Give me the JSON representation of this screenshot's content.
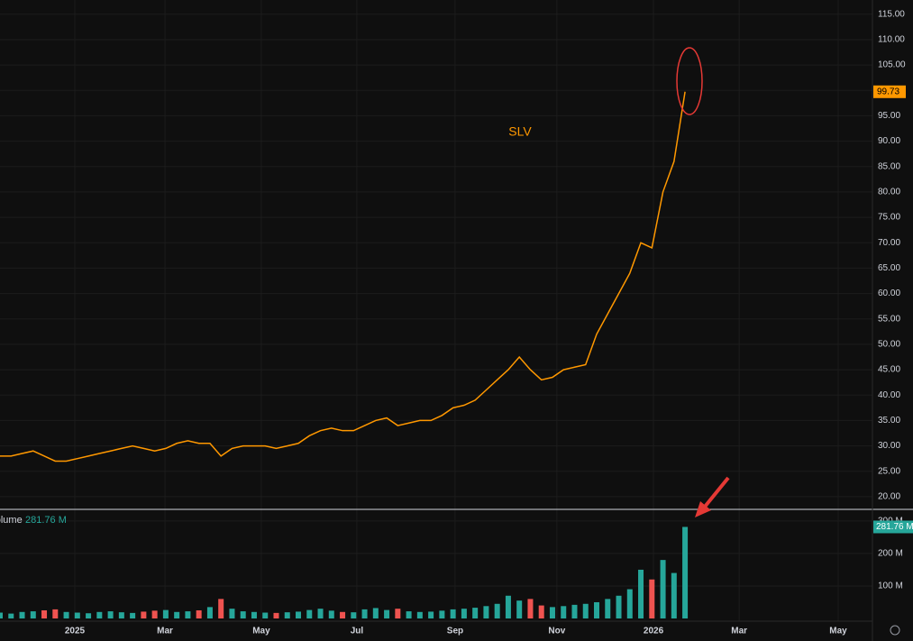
{
  "chart_data": [
    {
      "type": "line",
      "title": "SLV",
      "color": "#ff9800",
      "values": [
        28,
        28,
        28.5,
        29,
        28,
        27,
        27,
        27.5,
        28,
        28.5,
        29,
        29.5,
        30,
        29.5,
        29,
        29.5,
        30.5,
        31,
        30.5,
        30.5,
        28,
        29.5,
        30,
        30,
        30,
        29.5,
        30,
        30.5,
        32,
        33,
        33.5,
        33,
        33,
        34,
        35,
        35.5,
        34,
        34.5,
        35,
        35,
        36,
        37.5,
        38,
        39,
        41,
        43,
        45,
        47.5,
        45,
        43,
        43.5,
        45,
        45.5,
        46,
        52,
        56,
        60,
        64,
        70,
        69,
        80,
        86,
        99.73
      ],
      "last_value_label": "99.73",
      "xlim": [
        0,
        78.96
      ],
      "xticks": [
        {
          "value": 6.77,
          "label": "2025"
        },
        {
          "value": 14.93,
          "label": "Mar"
        },
        {
          "value": 23.65,
          "label": "May"
        },
        {
          "value": 32.3,
          "label": "Jul"
        },
        {
          "value": 41.19,
          "label": "Sep"
        },
        {
          "value": 50.4,
          "label": "Nov"
        },
        {
          "value": 59.14,
          "label": "2026"
        },
        {
          "value": 66.9,
          "label": "Mar"
        },
        {
          "value": 75.86,
          "label": "May"
        }
      ],
      "ylim": [
        17.5,
        117.8
      ],
      "yticks": [
        {
          "value": 20,
          "label": "20.00"
        },
        {
          "value": 25,
          "label": "25.00"
        },
        {
          "value": 30,
          "label": "30.00"
        },
        {
          "value": 35,
          "label": "35.00"
        },
        {
          "value": 40,
          "label": "40.00"
        },
        {
          "value": 45,
          "label": "45.00"
        },
        {
          "value": 50,
          "label": "50.00"
        },
        {
          "value": 55,
          "label": "55.00"
        },
        {
          "value": 60,
          "label": "60.00"
        },
        {
          "value": 65,
          "label": "65.00"
        },
        {
          "value": 70,
          "label": "70.00"
        },
        {
          "value": 75,
          "label": "75.00"
        },
        {
          "value": 80,
          "label": "80.00"
        },
        {
          "value": 85,
          "label": "85.00"
        },
        {
          "value": 90,
          "label": "90.00"
        },
        {
          "value": 95,
          "label": "95.00"
        },
        {
          "value": 100,
          "label": "100.00"
        },
        {
          "value": 105,
          "label": "105.00"
        },
        {
          "value": 110,
          "label": "110.00"
        },
        {
          "value": 115,
          "label": "115.00"
        }
      ],
      "grid": true
    },
    {
      "type": "bar",
      "title": "Volume",
      "up_color": "#26a69a",
      "down_color": "#ef5350",
      "values": [
        18,
        15,
        20,
        22,
        25,
        28,
        20,
        18,
        16,
        20,
        22,
        19,
        17,
        21,
        24,
        26,
        20,
        22,
        25,
        35,
        60,
        30,
        22,
        20,
        18,
        17,
        19,
        21,
        26,
        30,
        24,
        20,
        19,
        28,
        32,
        26,
        30,
        22,
        20,
        21,
        24,
        28,
        30,
        33,
        38,
        45,
        70,
        55,
        60,
        40,
        35,
        38,
        42,
        45,
        50,
        60,
        70,
        90,
        150,
        120,
        180,
        140,
        281.76
      ],
      "last_value_label": "281.76 M",
      "ylim": [
        0,
        333
      ],
      "yticks": [
        {
          "value": 100,
          "label": "100 M"
        },
        {
          "value": 200,
          "label": "200 M"
        },
        {
          "value": 300,
          "label": "300 M"
        }
      ]
    }
  ]
}
